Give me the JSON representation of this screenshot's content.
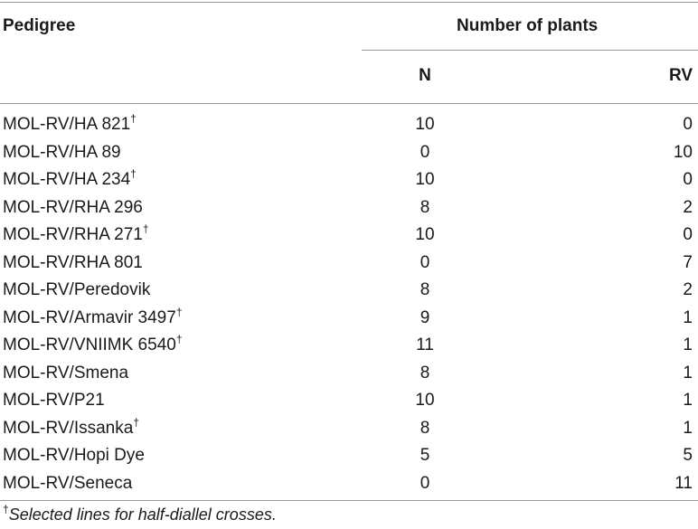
{
  "table": {
    "headers": {
      "pedigree": "Pedigree",
      "group": "Number of plants",
      "n": "N",
      "rv": "RV"
    },
    "rows": [
      {
        "pedigree": "MOL-RV/HA 821",
        "mark": "†",
        "n": "10",
        "rv": "0"
      },
      {
        "pedigree": "MOL-RV/HA 89",
        "mark": "",
        "n": "0",
        "rv": "10"
      },
      {
        "pedigree": "MOL-RV/HA 234",
        "mark": "†",
        "n": "10",
        "rv": "0"
      },
      {
        "pedigree": "MOL-RV/RHA 296",
        "mark": "",
        "n": "8",
        "rv": "2"
      },
      {
        "pedigree": "MOL-RV/RHA 271",
        "mark": "†",
        "n": "10",
        "rv": "0"
      },
      {
        "pedigree": "MOL-RV/RHA 801",
        "mark": "",
        "n": "0",
        "rv": "7"
      },
      {
        "pedigree": "MOL-RV/Peredovik",
        "mark": "",
        "n": "8",
        "rv": "2"
      },
      {
        "pedigree": "MOL-RV/Armavir 3497",
        "mark": "†",
        "n": "9",
        "rv": "1"
      },
      {
        "pedigree": "MOL-RV/VNIIMK 6540",
        "mark": "†",
        "n": "11",
        "rv": "1"
      },
      {
        "pedigree": "MOL-RV/Smena",
        "mark": "",
        "n": "8",
        "rv": "1"
      },
      {
        "pedigree": "MOL-RV/P21",
        "mark": "",
        "n": "10",
        "rv": "1"
      },
      {
        "pedigree": "MOL-RV/Issanka",
        "mark": "†",
        "n": "8",
        "rv": "1"
      },
      {
        "pedigree": "MOL-RV/Hopi Dye",
        "mark": "",
        "n": "5",
        "rv": "5"
      },
      {
        "pedigree": "MOL-RV/Seneca",
        "mark": "",
        "n": "0",
        "rv": "11"
      }
    ]
  },
  "footnote": {
    "mark": "†",
    "text": "Selected lines for half-diallel crosses."
  }
}
